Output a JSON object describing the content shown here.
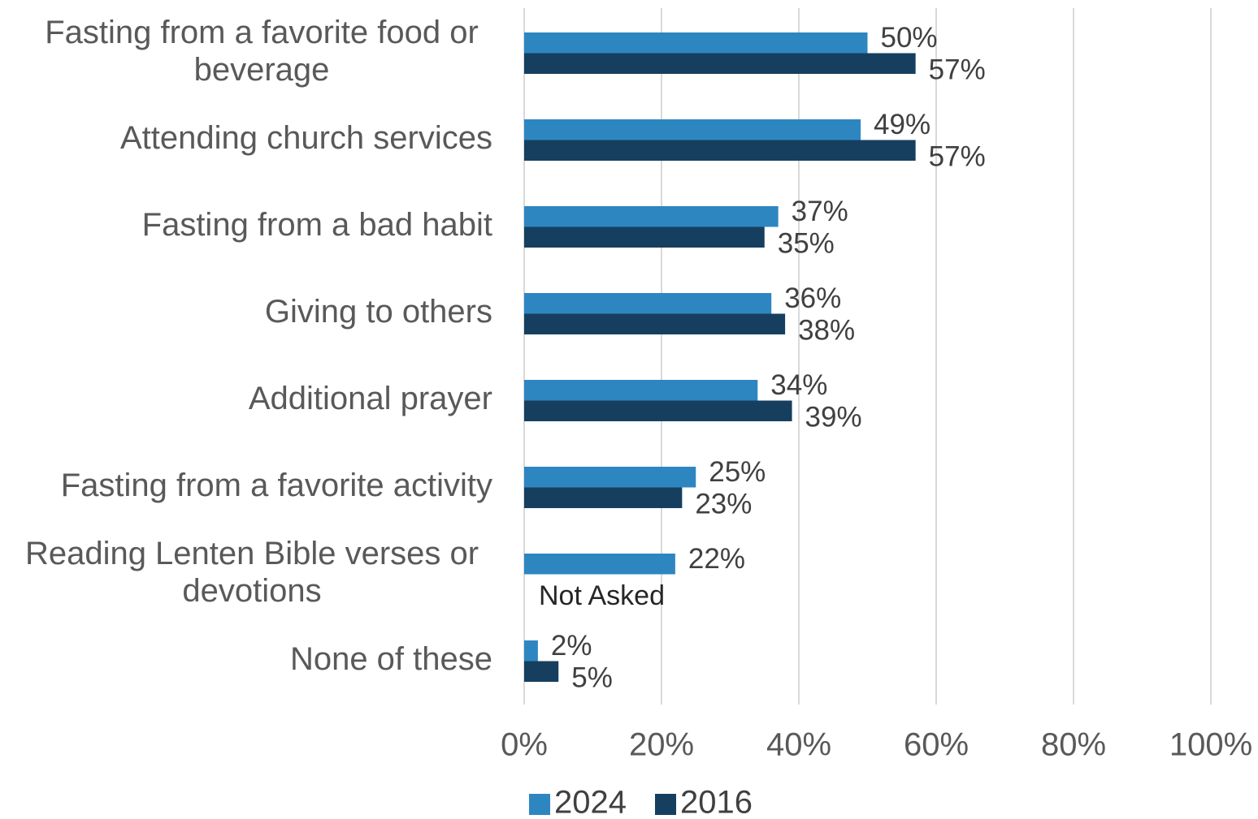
{
  "chart_data": {
    "type": "bar",
    "orientation": "horizontal",
    "categories": [
      [
        "Fasting from a favorite food or",
        "beverage"
      ],
      [
        "Attending church services"
      ],
      [
        "Fasting from a bad habit"
      ],
      [
        "Giving to others"
      ],
      [
        "Additional prayer"
      ],
      [
        "Fasting from a favorite activity"
      ],
      [
        "Reading Lenten Bible verses or",
        "devotions"
      ],
      [
        "None of these"
      ]
    ],
    "series": [
      {
        "name": "2024",
        "color": "#2e86c1",
        "values": [
          50,
          49,
          37,
          36,
          34,
          25,
          22,
          2
        ],
        "labels": [
          "50%",
          "49%",
          "37%",
          "36%",
          "34%",
          "25%",
          "22%",
          "2%"
        ]
      },
      {
        "name": "2016",
        "color": "#163f5f",
        "values": [
          57,
          57,
          35,
          38,
          39,
          23,
          null,
          5
        ],
        "labels": [
          "57%",
          "57%",
          "35%",
          "38%",
          "39%",
          "23%",
          null,
          "5%"
        ]
      }
    ],
    "notes": [
      {
        "category_index": 6,
        "series_index": 1,
        "text": "Not Asked"
      }
    ],
    "xlim": [
      0,
      100
    ],
    "xticks": [
      "0%",
      "20%",
      "40%",
      "60%",
      "80%",
      "100%"
    ],
    "grid": true,
    "legend": "bottom",
    "title": "",
    "xlabel": "",
    "ylabel": ""
  }
}
